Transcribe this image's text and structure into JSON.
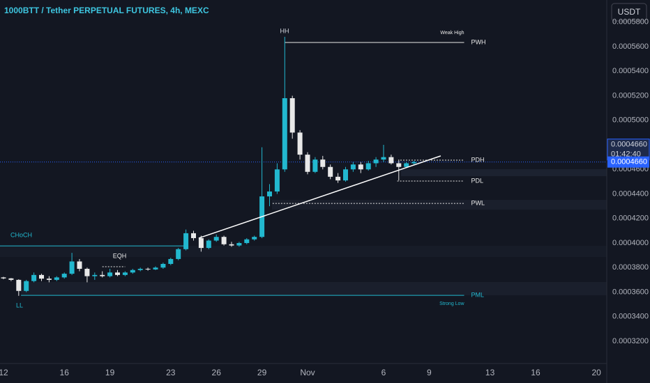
{
  "chart_data": {
    "type": "candlestick",
    "title": "1000BTT / Tether PERPETUAL FUTURES, 4h, MEXC",
    "currency_button": "USDT",
    "up_color": "#22b8cf",
    "down_color": "#e8e8e8",
    "x": [
      0,
      0.5,
      1,
      1.5,
      2,
      2.5,
      3,
      3.5,
      4,
      4.5,
      5,
      5.5,
      6,
      6.5,
      7,
      7.5,
      8,
      8.5,
      9,
      9.5,
      10,
      10.5,
      11,
      11.5,
      12,
      12.5,
      13,
      13.5,
      14,
      14.5,
      15,
      15.5,
      16,
      16.5,
      17,
      17.5,
      18,
      18.5,
      19,
      19.5,
      20,
      20.5,
      21,
      21.5,
      22,
      22.5,
      23,
      23.5,
      24,
      24.5,
      25,
      25.5,
      26,
      26.5,
      27
    ],
    "open": [
      0.000372,
      0.0003712,
      0.00037,
      0.000361,
      0.000369,
      0.000374,
      0.000371,
      0.00037,
      0.000372,
      0.000375,
      0.000385,
      0.000379,
      0.000373,
      0.000374,
      0.000373,
      0.000376,
      0.000374,
      0.000376,
      0.000378,
      0.000379,
      0.0003785,
      0.00038,
      0.000383,
      0.000387,
      0.000395,
      0.000408,
      0.000404,
      0.000396,
      0.000402,
      0.000405,
      0.000399,
      0.000398,
      0.0004,
      0.000403,
      0.000405,
      0.000438,
      0.000442,
      0.00046,
      0.000518,
      0.00049,
      0.000472,
      0.000458,
      0.000468,
      0.000462,
      0.000454,
      0.000451,
      0.00046,
      0.000464,
      0.00046,
      0.000465,
      0.000468,
      0.00047,
      0.000465,
      0.000462,
      0.000465
    ],
    "high": [
      0.0003725,
      0.0003715,
      0.0003705,
      0.00037,
      0.000376,
      0.000375,
      0.000373,
      0.000373,
      0.000376,
      0.000392,
      0.000387,
      0.00038,
      0.000376,
      0.000377,
      0.000379,
      0.000378,
      0.000377,
      0.000379,
      0.00038,
      0.00038,
      0.000381,
      0.000384,
      0.000388,
      0.000396,
      0.000411,
      0.00041,
      0.000406,
      0.000403,
      0.000407,
      0.000406,
      0.000401,
      0.000401,
      0.000404,
      0.000406,
      0.000478,
      0.000448,
      0.000465,
      0.000568,
      0.00052,
      0.000492,
      0.000474,
      0.00047,
      0.000471,
      0.000464,
      0.000457,
      0.000462,
      0.000466,
      0.000466,
      0.000467,
      0.00047,
      0.00048,
      0.000472,
      0.000468,
      0.000466,
      0.000467
    ],
    "low": [
      0.0003705,
      0.000369,
      0.000357,
      0.00036,
      0.000368,
      0.000369,
      0.000368,
      0.000369,
      0.000371,
      0.000374,
      0.000377,
      0.000368,
      0.00037,
      0.000372,
      0.000372,
      0.000373,
      0.000373,
      0.000375,
      0.000377,
      0.0003775,
      0.000378,
      0.000379,
      0.000382,
      0.000386,
      0.000394,
      0.000402,
      0.000393,
      0.000395,
      0.000401,
      0.000398,
      0.000397,
      0.000397,
      0.000399,
      0.000402,
      0.000404,
      0.00043,
      0.00044,
      0.000458,
      0.000485,
      0.000468,
      0.000456,
      0.000457,
      0.00046,
      0.000452,
      0.000449,
      0.00045,
      0.000458,
      0.000457,
      0.000459,
      0.000462,
      0.000466,
      0.000464,
      0.000451,
      0.000461,
      0.000464
    ],
    "close": [
      0.0003712,
      0.00037,
      0.000361,
      0.000369,
      0.000374,
      0.000371,
      0.00037,
      0.000372,
      0.000375,
      0.000385,
      0.000379,
      0.000373,
      0.000374,
      0.000373,
      0.000376,
      0.000374,
      0.000376,
      0.000378,
      0.000379,
      0.0003785,
      0.00038,
      0.000383,
      0.000387,
      0.000395,
      0.000408,
      0.000404,
      0.000396,
      0.000402,
      0.000405,
      0.000399,
      0.000398,
      0.0004,
      0.000403,
      0.000405,
      0.000438,
      0.000442,
      0.00046,
      0.000518,
      0.00049,
      0.000472,
      0.000458,
      0.000468,
      0.000462,
      0.000454,
      0.000451,
      0.00046,
      0.000464,
      0.00046,
      0.000465,
      0.000468,
      0.00047,
      0.000465,
      0.000462,
      0.000465,
      0.000466
    ],
    "xlim": [
      -0.23,
      39.68
    ],
    "xticks": [
      {
        "value": 0,
        "label": "12"
      },
      {
        "value": 4,
        "label": "16"
      },
      {
        "value": 7,
        "label": "19"
      },
      {
        "value": 11,
        "label": "23"
      },
      {
        "value": 14,
        "label": "26"
      },
      {
        "value": 17,
        "label": "29"
      },
      {
        "value": 20,
        "label": "Nov"
      },
      {
        "value": 25,
        "label": "6"
      },
      {
        "value": 28,
        "label": "9"
      },
      {
        "value": 32,
        "label": "13"
      },
      {
        "value": 35,
        "label": "16"
      },
      {
        "value": 39,
        "label": "20"
      }
    ],
    "ylim": [
      0.000303,
      0.000598
    ],
    "yticks": [
      {
        "value": 0.00032,
        "label": "0.0003200"
      },
      {
        "value": 0.00034,
        "label": "0.0003400"
      },
      {
        "value": 0.00036,
        "label": "0.0003600"
      },
      {
        "value": 0.00038,
        "label": "0.0003800"
      },
      {
        "value": 0.0004,
        "label": "0.0004000"
      },
      {
        "value": 0.00042,
        "label": "0.0004200"
      },
      {
        "value": 0.00044,
        "label": "0.0004400"
      },
      {
        "value": 0.00046,
        "label": "0.0004600"
      },
      {
        "value": 0.00048,
        "label": "0.0004800"
      },
      {
        "value": 0.0005,
        "label": "0.0005000"
      },
      {
        "value": 0.00052,
        "label": "0.0005200"
      },
      {
        "value": 0.00054,
        "label": "0.0005400"
      },
      {
        "value": 0.00056,
        "label": "0.0005600"
      },
      {
        "value": 0.00058,
        "label": "0.0005800"
      }
    ],
    "grid": false,
    "levels": [
      {
        "label": "PWH",
        "tag": "Weak High",
        "value": 0.0005634,
        "from": 18.5,
        "to": 30.3,
        "style": "solid",
        "color": "#e8e8e8"
      },
      {
        "label": "PDH",
        "value": 0.0004675,
        "from": 26.1,
        "to": 30.3,
        "style": "dotted",
        "color": "#e8e8e8"
      },
      {
        "label": "PDL",
        "value": 0.0004505,
        "from": 25.9,
        "to": 30.3,
        "style": "dotted",
        "color": "#e8e8e8"
      },
      {
        "label": "PWL",
        "value": 0.0004323,
        "from": 17.7,
        "to": 30.3,
        "style": "dotted",
        "color": "#e8e8e8"
      },
      {
        "label": "PML",
        "tag": "Strong Low",
        "value": 0.0003574,
        "from": 1.15,
        "to": 30.3,
        "style": "solid",
        "color": "#22b8cf"
      }
    ],
    "structure": [
      {
        "label": "CHoCH",
        "value": 0.0003977,
        "from": -0.23,
        "to": 12.15,
        "style": "solid",
        "color": "#22b8cf"
      },
      {
        "label": "EQH",
        "value": 0.0003807,
        "from": 6.5,
        "to": 8.0,
        "style": "dotted",
        "color": "#e8e8e8"
      }
    ],
    "swing_high": "HH",
    "swing_low": "LL",
    "trendline": {
      "x": [
        12.84,
        28.76
      ],
      "y": [
        0.000404,
        0.000471
      ],
      "color": "#ffffff"
    },
    "last_price": {
      "value": 0.000466,
      "label": "0.0004660",
      "countdown": "01:42:40",
      "color": "#2962ff"
    }
  }
}
